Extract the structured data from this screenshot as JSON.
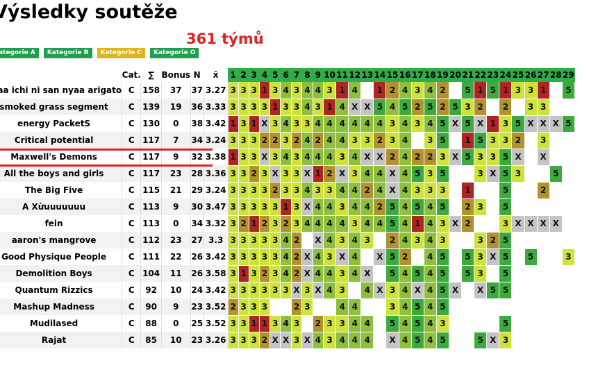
{
  "header": {
    "title": "Výsledky soutěže",
    "team_count": "361 týmů"
  },
  "categories": [
    "Kategorie A",
    "Kategorie B",
    "Kategorie C",
    "Kategorie O"
  ],
  "columns": {
    "cat": "Cat.",
    "sum": "∑",
    "bonus": "Bonus",
    "n": "N",
    "avg": "x̄",
    "tasks": [
      "1",
      "2",
      "3",
      "4",
      "5",
      "6",
      "7",
      "8",
      "9",
      "10",
      "11",
      "12",
      "13",
      "14",
      "15",
      "16",
      "17",
      "18",
      "19",
      "20",
      "21",
      "22",
      "23",
      "24",
      "25",
      "26",
      "27",
      "28",
      "29"
    ]
  },
  "highlighted_team": "Critical potential",
  "rows": [
    {
      "team": "nyaa ichi ni san nyaa arigato",
      "cat": "C",
      "sum": "158",
      "bonus": "37",
      "n": "37",
      "avg": "3.27",
      "cells": [
        "3",
        "3",
        "3",
        "1",
        "3",
        "4",
        "3",
        "4",
        "4",
        "3",
        "1",
        "4",
        "",
        "1",
        "2",
        "4",
        "3",
        "4",
        "2",
        "",
        "5",
        "1",
        "5",
        "1",
        "3",
        "3",
        "1",
        "",
        "5"
      ]
    },
    {
      "team": "smoked grass segment",
      "cat": "C",
      "sum": "139",
      "bonus": "19",
      "n": "36",
      "avg": "3.33",
      "cells": [
        "3",
        "3",
        "3",
        "3",
        "1",
        "3",
        "3",
        "4",
        "3",
        "1",
        "4",
        "X",
        "X",
        "5",
        "4",
        "5",
        "2",
        "5",
        "2",
        "5",
        "3",
        "2",
        "",
        "2",
        "",
        "3",
        "3",
        "",
        ""
      ]
    },
    {
      "team": "energy PacketS",
      "cat": "C",
      "sum": "130",
      "bonus": "0",
      "n": "38",
      "avg": "3.42",
      "cells": [
        "1",
        "3",
        "1",
        "X",
        "3",
        "4",
        "3",
        "3",
        "4",
        "4",
        "4",
        "4",
        "4",
        "4",
        "3",
        "4",
        "3",
        "4",
        "5",
        "X",
        "5",
        "X",
        "1",
        "3",
        "5",
        "X",
        "X",
        "X",
        "5"
      ]
    },
    {
      "team": "Critical potential",
      "cat": "C",
      "sum": "117",
      "bonus": "7",
      "n": "34",
      "avg": "3.24",
      "cells": [
        "3",
        "3",
        "3",
        "2",
        "2",
        "3",
        "2",
        "4",
        "2",
        "4",
        "4",
        "3",
        "3",
        "2",
        "3",
        "4",
        "",
        "3",
        "5",
        "",
        "1",
        "5",
        "3",
        "3",
        "2",
        "",
        "3",
        "",
        ""
      ]
    },
    {
      "team": "Maxwell's Demons",
      "cat": "C",
      "sum": "117",
      "bonus": "9",
      "n": "32",
      "avg": "3.38",
      "cells": [
        "1",
        "3",
        "3",
        "X",
        "3",
        "4",
        "3",
        "4",
        "4",
        "4",
        "3",
        "4",
        "X",
        "X",
        "2",
        "4",
        "2",
        "2",
        "3",
        "X",
        "5",
        "3",
        "3",
        "5",
        "X",
        "",
        "X",
        "",
        ""
      ]
    },
    {
      "team": "All the boys and girls",
      "cat": "C",
      "sum": "117",
      "bonus": "23",
      "n": "28",
      "avg": "3.36",
      "cells": [
        "3",
        "3",
        "2",
        "3",
        "X",
        "3",
        "3",
        "X",
        "1",
        "2",
        "X",
        "3",
        "4",
        "4",
        "X",
        "4",
        "5",
        "3",
        "5",
        "",
        "",
        "3",
        "X",
        "5",
        "3",
        "",
        "",
        "5",
        ""
      ]
    },
    {
      "team": "The Big Five",
      "cat": "C",
      "sum": "115",
      "bonus": "21",
      "n": "29",
      "avg": "3.24",
      "cells": [
        "3",
        "3",
        "3",
        "3",
        "2",
        "3",
        "3",
        "4",
        "3",
        "3",
        "4",
        "4",
        "2",
        "4",
        "X",
        "4",
        "3",
        "3",
        "3",
        "",
        "1",
        "",
        "",
        "5",
        "",
        "",
        "2",
        "",
        ""
      ]
    },
    {
      "team": "A Xừuuuuuuu",
      "cat": "C",
      "sum": "113",
      "bonus": "9",
      "n": "30",
      "avg": "3.47",
      "cells": [
        "3",
        "3",
        "3",
        "3",
        "3",
        "1",
        "3",
        "X",
        "4",
        "4",
        "3",
        "4",
        "4",
        "2",
        "5",
        "4",
        "5",
        "4",
        "5",
        "",
        "2",
        "3",
        "",
        "5",
        "",
        "",
        "",
        "",
        ""
      ]
    },
    {
      "team": "fein",
      "cat": "C",
      "sum": "113",
      "bonus": "0",
      "n": "34",
      "avg": "3.32",
      "cells": [
        "3",
        "2",
        "1",
        "2",
        "3",
        "2",
        "3",
        "4",
        "4",
        "4",
        "4",
        "3",
        "4",
        "4",
        "5",
        "4",
        "1",
        "4",
        "3",
        "X",
        "2",
        "",
        "",
        "3",
        "X",
        "X",
        "X",
        "X",
        ""
      ]
    },
    {
      "team": "aaron's mangrove",
      "cat": "C",
      "sum": "112",
      "bonus": "23",
      "n": "27",
      "avg": "3.3",
      "cells": [
        "3",
        "3",
        "3",
        "3",
        "3",
        "4",
        "2",
        "",
        "X",
        "4",
        "3",
        "4",
        "3",
        "",
        "2",
        "4",
        "3",
        "4",
        "3",
        "",
        "",
        "3",
        "2",
        "5",
        "",
        "",
        "",
        "",
        ""
      ]
    },
    {
      "team": "Good Physique People",
      "cat": "C",
      "sum": "111",
      "bonus": "22",
      "n": "26",
      "avg": "3.42",
      "cells": [
        "3",
        "3",
        "3",
        "3",
        "3",
        "4",
        "2",
        "X",
        "4",
        "3",
        "X",
        "4",
        "",
        "X",
        "5",
        "2",
        "",
        "4",
        "5",
        "",
        "5",
        "3",
        "X",
        "5",
        "",
        "5",
        "",
        "",
        "3"
      ]
    },
    {
      "team": "Demolition Boys",
      "cat": "C",
      "sum": "104",
      "bonus": "11",
      "n": "26",
      "avg": "3.58",
      "cells": [
        "3",
        "1",
        "3",
        "2",
        "3",
        "4",
        "2",
        "X",
        "4",
        "4",
        "3",
        "4",
        "X",
        "",
        "5",
        "4",
        "5",
        "4",
        "5",
        "",
        "5",
        "3",
        "",
        "5",
        "",
        "",
        "",
        "",
        ""
      ]
    },
    {
      "team": "Quantum Rizzics",
      "cat": "C",
      "sum": "92",
      "bonus": "10",
      "n": "24",
      "avg": "3.42",
      "cells": [
        "3",
        "3",
        "3",
        "3",
        "3",
        "3",
        "X",
        "3",
        "X",
        "4",
        "3",
        "",
        "4",
        "X",
        "3",
        "4",
        "X",
        "4",
        "5",
        "X",
        "",
        "X",
        "5",
        "5",
        "",
        "",
        "",
        "",
        ""
      ]
    },
    {
      "team": "Mashup Madness",
      "cat": "C",
      "sum": "90",
      "bonus": "9",
      "n": "23",
      "avg": "3.52",
      "cells": [
        "2",
        "3",
        "3",
        "3",
        "",
        "",
        "2",
        "3",
        "",
        "",
        "4",
        "4",
        "",
        "",
        "3",
        "4",
        "5",
        "4",
        "5",
        "",
        "",
        "",
        "",
        "",
        "",
        "",
        "",
        "",
        ""
      ]
    },
    {
      "team": "Mudilased",
      "cat": "C",
      "sum": "88",
      "bonus": "0",
      "n": "25",
      "avg": "3.52",
      "cells": [
        "3",
        "3",
        "1",
        "1",
        "3",
        "4",
        "3",
        "",
        "2",
        "3",
        "3",
        "4",
        "4",
        "",
        "5",
        "4",
        "5",
        "4",
        "3",
        "",
        "",
        "",
        "",
        "5",
        "",
        "",
        "",
        "",
        ""
      ]
    },
    {
      "team": "Rajat",
      "cat": "C",
      "sum": "85",
      "bonus": "10",
      "n": "23",
      "avg": "3.26",
      "cells": [
        "3",
        "3",
        "3",
        "2",
        "X",
        "X",
        "3",
        "X",
        "4",
        "3",
        "4",
        "4",
        "4",
        "",
        "X",
        "4",
        "5",
        "4",
        "5",
        "",
        "",
        "5",
        "X",
        "3",
        "",
        "",
        "",
        "",
        ""
      ]
    }
  ]
}
